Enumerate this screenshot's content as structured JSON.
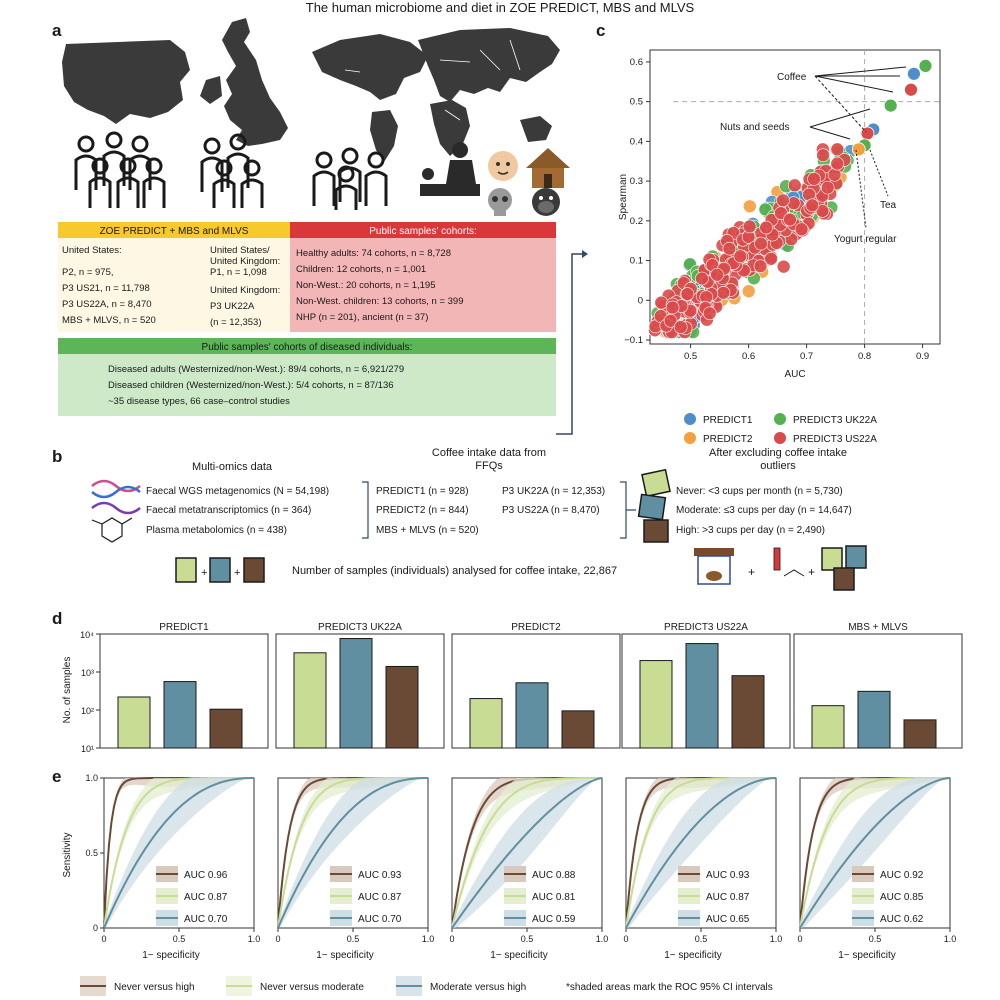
{
  "title": "The human microbiome and diet in ZOE PREDICT, MBS and MLVS",
  "panel_letters": [
    "a",
    "b",
    "c",
    "d",
    "e"
  ],
  "colors": {
    "never_high": "#6b4a35",
    "never_moderate": "#c8dc94",
    "moderate_high": "#5f8fa0",
    "predict1": "#4f8fc9",
    "predict2": "#f2a03f",
    "predict3_uk22a": "#55b04f",
    "predict3_us22a": "#d94a4a",
    "yellow_header": "#f7c92c",
    "red_header": "#d9383a",
    "green_header": "#5db55a"
  },
  "panel_a": {
    "zoe_header": "ZOE PREDICT + MBS and MLVS",
    "zoe_items": [
      "United States:",
      "P2, n = 975,",
      "P3 US21, n = 11,798",
      "P3 US22A, n = 8,470",
      "MBS + MLVS, n = 520"
    ],
    "zoe_items_right": [
      "United States/",
      "United Kingdom:",
      "P1, n = 1,098",
      "United Kingdom:",
      "P3 UK22A",
      "(n = 12,353)"
    ],
    "public_header": "Public samples' cohorts:",
    "public_items": [
      "Healthy adults: 74 cohorts, n = 8,728",
      "Children: 12 cohorts, n = 1,001",
      "Non-West.: 20 cohorts, n = 1,195",
      "Non-West. children: 13 cohorts, n = 399",
      "NHP (n = 201), ancient (n = 37)"
    ],
    "diseased_header": "Public samples' cohorts of diseased individuals:",
    "diseased_items": [
      "Diseased adults (Westernized/non-West.): 89/4 cohorts, n = 6,921/279",
      "Diseased children (Westernized/non-West.): 5/4 cohorts, n = 87/136",
      "~35 disease types, 66 case–control studies"
    ]
  },
  "panel_b": {
    "omics_title": "Multi-omics data",
    "omics_items": [
      "Faecal WGS metagenomics (N = 54,198)",
      "Faecal metatranscriptomics (n = 364)",
      "Plasma metabolomics (n = 438)"
    ],
    "coffee_title_1": "Coffee intake data from",
    "coffee_title_2": "FFQs",
    "coffee_left": [
      "PREDICT1 (n = 928)",
      "PREDICT2 (n = 844)",
      "MBS + MLVS (n = 520)"
    ],
    "coffee_right": [
      "P3 UK22A (n = 12,353)",
      "P3 US22A (n = 8,470)"
    ],
    "excl_title_1": "After excluding coffee intake",
    "excl_title_2": "outliers",
    "excl_items": [
      "Never: <3 cups per month (n = 5,730)",
      "Moderate: ≤3 cups per day (n = 14,647)",
      "High: >3 cups per day (n = 2,490)"
    ],
    "total": "Number of samples (individuals) analysed for coffee intake, 22,867",
    "plus": "+"
  },
  "chart_data": [
    {
      "id": "c",
      "type": "scatter",
      "title": "",
      "xlabel": "AUC",
      "ylabel": "Spearman",
      "xlim": [
        0.43,
        0.93
      ],
      "ylim": [
        -0.11,
        0.63
      ],
      "xticks": [
        "0.5",
        "0.6",
        "0.7",
        "0.8",
        "0.9"
      ],
      "yticks": [
        "−0.1",
        "0",
        "0.1",
        "0.2",
        "0.3",
        "0.4",
        "0.5",
        "0.6"
      ],
      "threshold_x": 0.8,
      "threshold_y": 0.5,
      "legend": [
        "PREDICT1",
        "PREDICT2",
        "PREDICT3 UK22A",
        "PREDICT3 US22A"
      ],
      "annotations": [
        "Coffee",
        "Nuts and seeds",
        "Tea",
        "Yogurt regular"
      ],
      "highlight_points": [
        {
          "series": "PREDICT3 UK22A",
          "x": 0.905,
          "y": 0.59
        },
        {
          "series": "PREDICT1",
          "x": 0.885,
          "y": 0.57
        },
        {
          "series": "PREDICT3 US22A",
          "x": 0.88,
          "y": 0.53
        },
        {
          "series": "PREDICT3 UK22A",
          "x": 0.845,
          "y": 0.49
        },
        {
          "series": "PREDICT1",
          "x": 0.815,
          "y": 0.43
        },
        {
          "series": "PREDICT3 US22A",
          "x": 0.805,
          "y": 0.42
        },
        {
          "series": "PREDICT3 UK22A",
          "x": 0.8,
          "y": 0.39
        },
        {
          "series": "PREDICT2",
          "x": 0.79,
          "y": 0.38
        }
      ],
      "cloud_note": "dense cloud of several hundred food items per cohort, AUC 0.45–0.80, Spearman −0.08–0.40"
    },
    {
      "id": "d",
      "type": "bar",
      "ylabel": "No. of samples",
      "yscale": "log",
      "ylim": [
        10,
        10000
      ],
      "yticks": [
        "10¹",
        "10²",
        "10³",
        "10⁴"
      ],
      "categories": [
        "Never",
        "Moderate",
        "High"
      ],
      "panels": [
        {
          "name": "PREDICT1",
          "values": [
            220,
            560,
            105
          ]
        },
        {
          "name": "PREDICT3 UK22A",
          "values": [
            3200,
            7600,
            1400
          ]
        },
        {
          "name": "PREDICT2",
          "values": [
            200,
            520,
            95
          ]
        },
        {
          "name": "PREDICT3 US22A",
          "values": [
            2000,
            5600,
            800
          ]
        },
        {
          "name": "MBS + MLVS",
          "values": [
            130,
            310,
            55
          ]
        }
      ]
    },
    {
      "id": "e",
      "type": "line",
      "xlabel": "1− specificity",
      "ylabel": "Sensitivity",
      "xticks": [
        "0",
        "0.5",
        "1.0"
      ],
      "yticks": [
        "0",
        "0.5",
        "1.0"
      ],
      "panels": [
        {
          "name": "PREDICT1",
          "auc": [
            "AUC 0.96",
            "AUC 0.87",
            "AUC 0.70"
          ],
          "auc_values": [
            0.96,
            0.87,
            0.7
          ]
        },
        {
          "name": "PREDICT3 UK22A",
          "auc": [
            "AUC 0.93",
            "AUC 0.87",
            "AUC 0.70"
          ],
          "auc_values": [
            0.93,
            0.87,
            0.7
          ]
        },
        {
          "name": "PREDICT2",
          "auc": [
            "AUC 0.88",
            "AUC 0.81",
            "AUC 0.59"
          ],
          "auc_values": [
            0.88,
            0.81,
            0.59
          ]
        },
        {
          "name": "PREDICT3 US22A",
          "auc": [
            "AUC 0.93",
            "AUC 0.87",
            "AUC 0.65"
          ],
          "auc_values": [
            0.93,
            0.87,
            0.65
          ]
        },
        {
          "name": "MBS + MLVS",
          "auc": [
            "AUC 0.92",
            "AUC 0.85",
            "AUC 0.62"
          ],
          "auc_values": [
            0.92,
            0.85,
            0.62
          ]
        }
      ],
      "legend": [
        "Never versus high",
        "Never versus moderate",
        "Moderate versus high"
      ],
      "legend_note": "*shaded areas mark the ROC 95% CI intervals"
    }
  ]
}
